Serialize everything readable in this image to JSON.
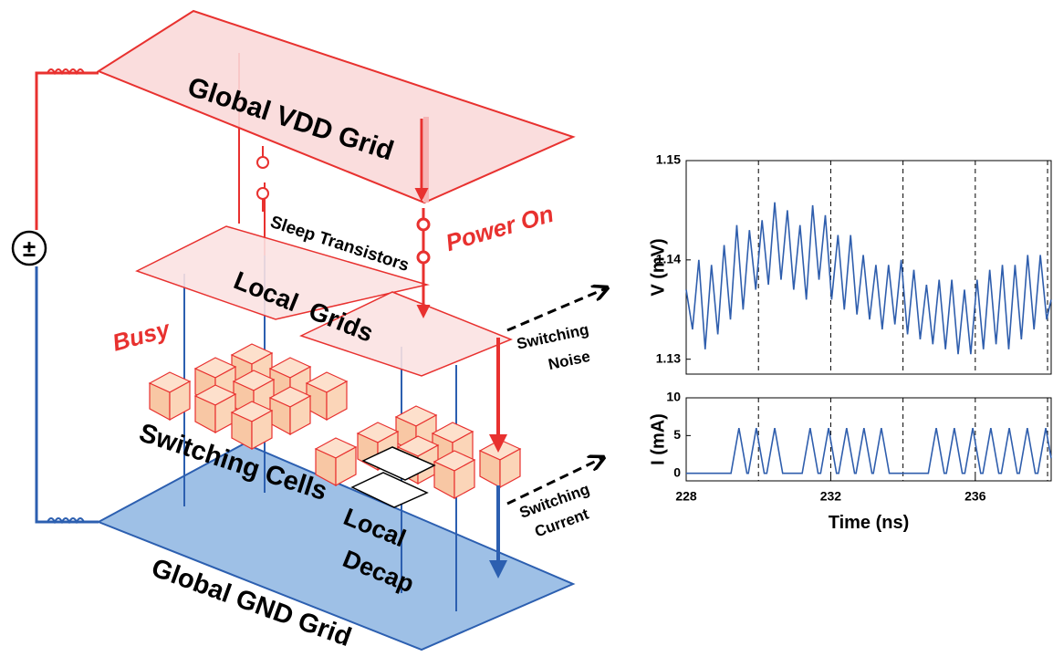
{
  "diagram": {
    "labels": {
      "vdd_grid": "Global VDD Grid",
      "sleep": "Sleep Transistors",
      "power_on": "Power On",
      "local_grids": "Local  Grids",
      "busy": "Busy",
      "cells": "Switching Cells",
      "decap": [
        "Local",
        "Decap"
      ],
      "gnd_grid": "Global GND Grid",
      "noise": [
        "Switching",
        "Noise"
      ],
      "current": [
        "Switching",
        "Current"
      ],
      "source": "±"
    }
  },
  "chart_data": [
    {
      "type": "line",
      "ylabel": "V  (mV)",
      "color": "#2f5ead",
      "x": [
        228,
        228.175,
        228.35,
        228.525,
        228.7,
        228.875,
        229.05,
        229.225,
        229.4,
        229.575,
        229.75,
        229.925,
        230.1,
        230.275,
        230.45,
        230.625,
        230.8,
        230.975,
        231.15,
        231.325,
        231.5,
        231.675,
        231.85,
        232.025,
        232.2,
        232.375,
        232.55,
        232.725,
        232.9,
        233.075,
        233.25,
        233.425,
        233.6,
        233.775,
        233.95,
        234.125,
        234.3,
        234.475,
        234.65,
        234.825,
        235,
        235.175,
        235.35,
        235.525,
        235.7,
        235.875,
        236.05,
        236.225,
        236.4,
        236.575,
        236.75,
        236.925,
        237.1,
        237.275,
        237.45,
        237.625,
        237.8,
        237.975,
        238.1
      ],
      "values": [
        1.137,
        1.133,
        1.14,
        1.131,
        1.1395,
        1.1325,
        1.1415,
        1.134,
        1.1435,
        1.135,
        1.143,
        1.137,
        1.144,
        1.1375,
        1.1458,
        1.138,
        1.145,
        1.137,
        1.1435,
        1.136,
        1.1455,
        1.138,
        1.1445,
        1.136,
        1.1425,
        1.135,
        1.1425,
        1.1345,
        1.1405,
        1.134,
        1.1395,
        1.133,
        1.1395,
        1.1335,
        1.14,
        1.1325,
        1.139,
        1.132,
        1.1375,
        1.1315,
        1.138,
        1.131,
        1.138,
        1.1305,
        1.137,
        1.1305,
        1.138,
        1.131,
        1.139,
        1.1315,
        1.1395,
        1.131,
        1.1395,
        1.132,
        1.1405,
        1.133,
        1.1405,
        1.134,
        1.136
      ],
      "xlim": [
        228,
        238.1
      ],
      "ylim": [
        1.1285,
        1.15
      ],
      "yticks": [
        1.13,
        1.14,
        1.15
      ],
      "vlines": [
        230,
        232,
        234,
        236,
        238
      ]
    },
    {
      "type": "line",
      "ylabel": "I  (mA)",
      "xlabel": "Time (ns)",
      "color": "#2f5ead",
      "x": [
        228,
        229.24,
        229.46,
        229.68,
        229.72,
        229.94,
        230.16,
        230.23,
        230.45,
        230.67,
        231.21,
        231.43,
        231.65,
        231.72,
        231.94,
        232.16,
        232.22,
        232.44,
        232.66,
        232.7,
        232.92,
        233.14,
        233.18,
        233.4,
        233.62,
        234.7,
        234.92,
        235.14,
        235.2,
        235.42,
        235.64,
        235.71,
        235.93,
        236.15,
        236.21,
        236.43,
        236.65,
        236.72,
        236.94,
        237.16,
        237.22,
        237.44,
        237.66,
        237.73,
        237.95,
        238.1
      ],
      "values": [
        0,
        0,
        6,
        0,
        0,
        6,
        0,
        0,
        6,
        0,
        0,
        6,
        0,
        0,
        6,
        0,
        0,
        6,
        0,
        0,
        6,
        0,
        0,
        6,
        0,
        0,
        6,
        0,
        0,
        6,
        0,
        0,
        6,
        0,
        0,
        6,
        0,
        0,
        6,
        0,
        0,
        6,
        0,
        0,
        6,
        2
      ],
      "xlim": [
        228,
        238.1
      ],
      "ylim": [
        -1,
        10
      ],
      "yticks": [
        0,
        5,
        10
      ],
      "xticks": [
        228,
        232,
        236
      ],
      "vlines": [
        230,
        232,
        234,
        236,
        238
      ]
    }
  ]
}
